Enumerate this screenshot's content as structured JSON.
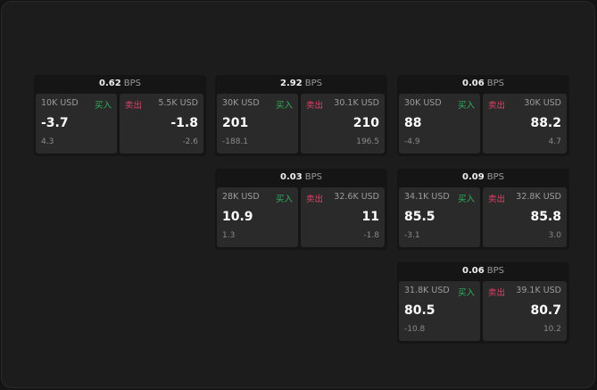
{
  "units": "BPS",
  "buy_label": "买入",
  "sell_label": "卖出",
  "colors": {
    "buy": "#2fb35e",
    "sell": "#e0406a",
    "background": "#1c1c1c"
  },
  "cards": [
    {
      "spread": "0.62",
      "bid_size": "10K USD",
      "bid": "-3.7",
      "bid_change": "4.3",
      "ask_size": "5.5K USD",
      "ask": "-1.8",
      "ask_change": "-2.6"
    },
    {
      "spread": "2.92",
      "bid_size": "30K USD",
      "bid": "201",
      "bid_change": "-188.1",
      "ask_size": "30.1K USD",
      "ask": "210",
      "ask_change": "196.5"
    },
    {
      "spread": "0.06",
      "bid_size": "30K USD",
      "bid": "88",
      "bid_change": "-4.9",
      "ask_size": "30K USD",
      "ask": "88.2",
      "ask_change": "4.7"
    },
    {
      "spread": "0.03",
      "bid_size": "28K USD",
      "bid": "10.9",
      "bid_change": "1.3",
      "ask_size": "32.6K USD",
      "ask": "11",
      "ask_change": "-1.8"
    },
    {
      "spread": "0.09",
      "bid_size": "34.1K USD",
      "bid": "85.5",
      "bid_change": "-3.1",
      "ask_size": "32.8K USD",
      "ask": "85.8",
      "ask_change": "3.0"
    },
    {
      "spread": "0.06",
      "bid_size": "31.8K USD",
      "bid": "80.5",
      "bid_change": "-10.8",
      "ask_size": "39.1K USD",
      "ask": "80.7",
      "ask_change": "10.2"
    }
  ]
}
